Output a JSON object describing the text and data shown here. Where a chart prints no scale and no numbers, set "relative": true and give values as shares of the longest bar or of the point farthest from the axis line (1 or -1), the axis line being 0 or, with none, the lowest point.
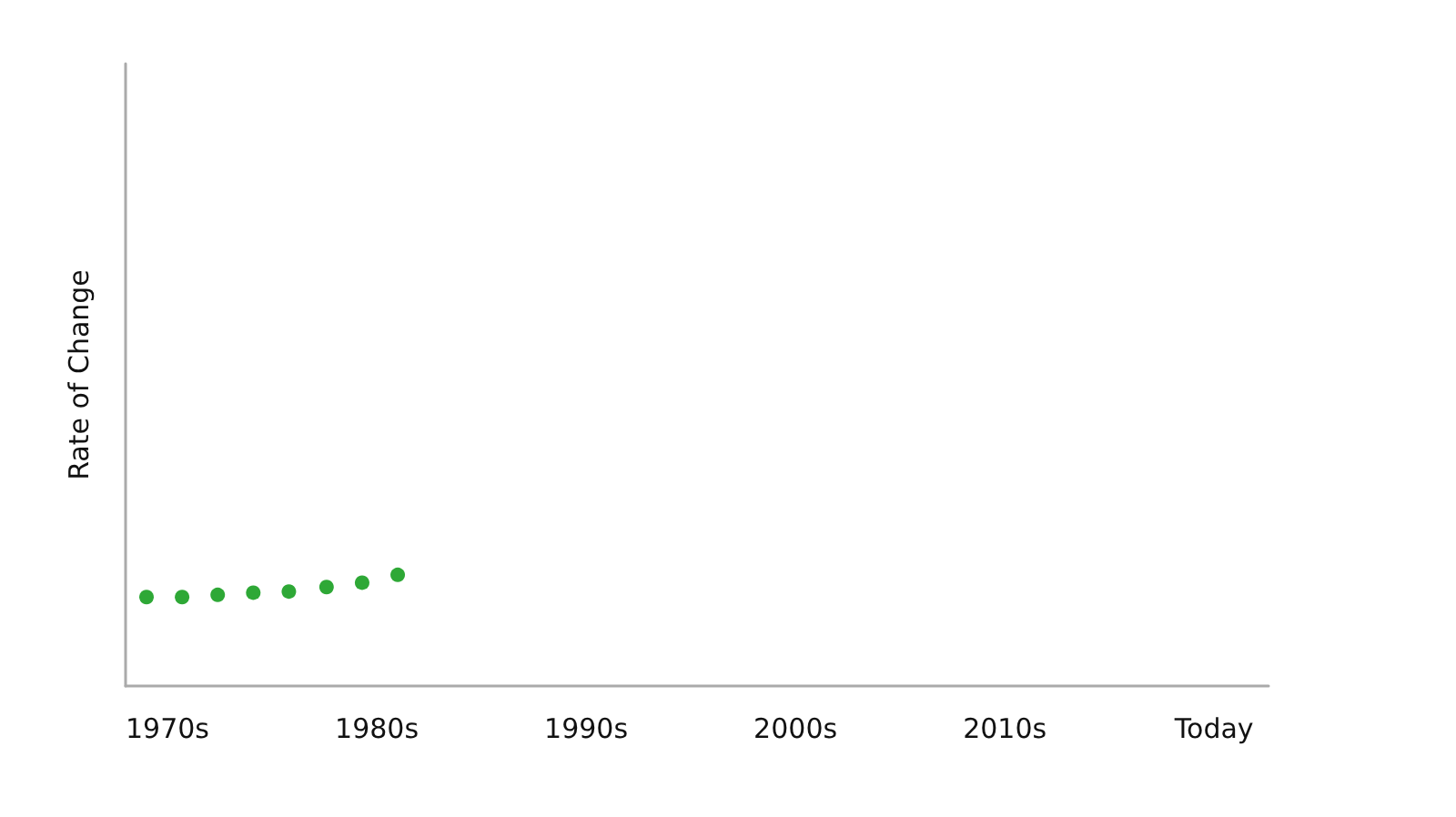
{
  "chart_data": {
    "type": "scatter",
    "ylabel": "Rate of Change",
    "relative": true,
    "x": [
      1969,
      1970.7,
      1972.4,
      1974.1,
      1975.8,
      1977.6,
      1979.3,
      1981
    ],
    "xlim": [
      1968,
      2022.6
    ],
    "xticks": [
      {
        "value": 1970,
        "label": "1970s"
      },
      {
        "value": 1980,
        "label": "1980s"
      },
      {
        "value": 1990,
        "label": "1990s"
      },
      {
        "value": 2000,
        "label": "2000s"
      },
      {
        "value": 2010,
        "label": "2010s"
      },
      {
        "value": 2020,
        "label": "Today"
      }
    ],
    "series": [
      {
        "color": "#2ea836",
        "values": [
          0.8,
          0.8,
          0.82,
          0.84,
          0.85,
          0.89,
          0.93,
          1
        ]
      }
    ],
    "marker": "circle",
    "grid": false
  }
}
